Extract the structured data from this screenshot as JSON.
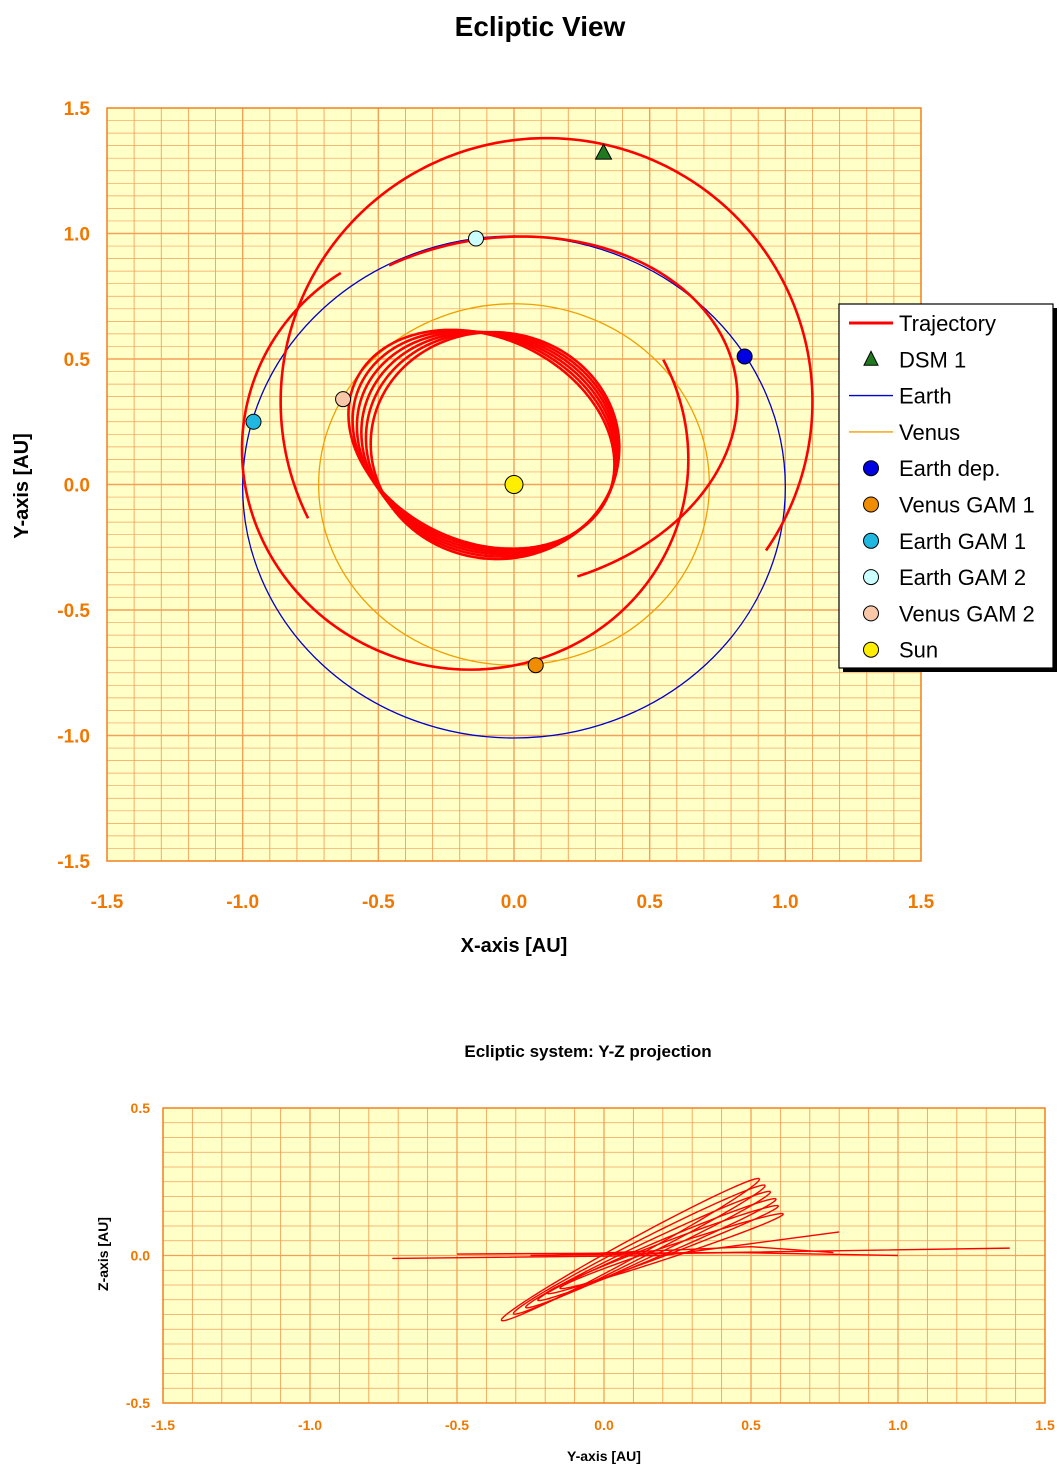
{
  "chart_data": [
    {
      "type": "line",
      "title": "Ecliptic View",
      "xlabel": "X-axis [AU]",
      "ylabel": "Y-axis [AU]",
      "xlim": [
        -1.5,
        1.5
      ],
      "ylim": [
        -1.5,
        1.5
      ],
      "xticks": [
        "-1.5",
        "-1.0",
        "-0.5",
        "0.0",
        "0.5",
        "1.0",
        "1.5"
      ],
      "yticks": [
        "1.5",
        "1.0",
        "0.5",
        "0.0",
        "-0.5",
        "-1.0",
        "-1.5"
      ],
      "grid": true,
      "legend_position": "right",
      "legend": [
        {
          "label": "Trajectory",
          "kind": "line",
          "color": "#ff0000"
        },
        {
          "label": "DSM 1",
          "kind": "triangle",
          "color": "#1f7a1f"
        },
        {
          "label": "Earth",
          "kind": "line",
          "color": "#0000cc"
        },
        {
          "label": "Venus",
          "kind": "line",
          "color": "#f0a000"
        },
        {
          "label": "Earth dep.",
          "kind": "dot",
          "color": "#0000e0"
        },
        {
          "label": "Venus GAM 1",
          "kind": "dot",
          "color": "#f08c00"
        },
        {
          "label": "Earth GAM 1",
          "kind": "dot",
          "color": "#20b8e0"
        },
        {
          "label": "Earth GAM 2",
          "kind": "dot",
          "color": "#ccffff"
        },
        {
          "label": "Venus GAM 2",
          "kind": "dot",
          "color": "#f8c8a8"
        },
        {
          "label": "Sun",
          "kind": "dot",
          "color": "#ffee00"
        }
      ],
      "points": [
        {
          "name": "DSM 1",
          "x": 0.33,
          "y": 1.32
        },
        {
          "name": "Earth dep.",
          "x": 0.85,
          "y": 0.51
        },
        {
          "name": "Venus GAM 1",
          "x": 0.08,
          "y": -0.72
        },
        {
          "name": "Earth GAM 1",
          "x": -0.96,
          "y": 0.25
        },
        {
          "name": "Earth GAM 2",
          "x": -0.14,
          "y": 0.98
        },
        {
          "name": "Venus GAM 2",
          "x": -0.63,
          "y": 0.34
        },
        {
          "name": "Sun",
          "x": 0.0,
          "y": 0.0
        }
      ],
      "orbits": [
        {
          "name": "Earth",
          "cx": 0.0,
          "cy": -0.01,
          "rx": 1.0,
          "ry": 1.0
        },
        {
          "name": "Venus",
          "cx": 0.0,
          "cy": 0.0,
          "rx": 0.72,
          "ry": 0.72
        }
      ]
    },
    {
      "type": "line",
      "title": "Ecliptic system: Y-Z projection",
      "xlabel": "Y-axis [AU]",
      "ylabel": "Z-axis [AU]",
      "xlim": [
        -1.5,
        1.5
      ],
      "ylim": [
        -0.5,
        0.5
      ],
      "xticks": [
        "-1.5",
        "-1.0",
        "-0.5",
        "0.0",
        "0.5",
        "1.0",
        "1.5"
      ],
      "yticks": [
        "0.5",
        "0.0",
        "-0.5"
      ],
      "grid": true
    }
  ],
  "colors": {
    "plot_bg": "#ffffc8",
    "grid": "#f5a058",
    "trajectory": "#ff0000",
    "earth_orbit": "#0000cc",
    "venus_orbit": "#f0a000",
    "tick_text": "#f07800"
  }
}
